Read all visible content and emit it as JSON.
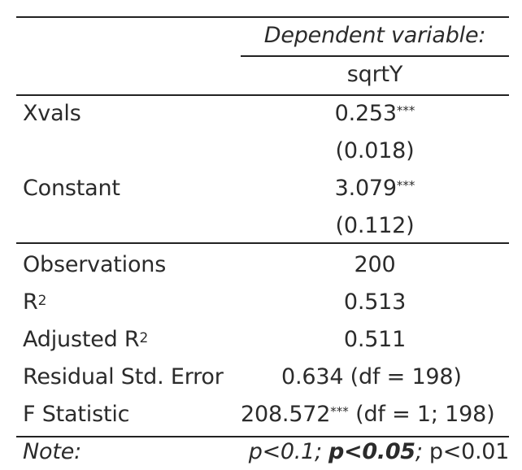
{
  "table": {
    "header": {
      "dependent_label": "Dependent variable:",
      "dependent_name": "sqrtY"
    },
    "coefficients": [
      {
        "name": "Xvals",
        "estimate": "0.253",
        "stars": "***",
        "se": "(0.018)"
      },
      {
        "name": "Constant",
        "estimate": "3.079",
        "stars": "***",
        "se": "(0.112)"
      }
    ],
    "stats": {
      "observations": {
        "label": "Observations",
        "value": "200"
      },
      "r2": {
        "label": "R",
        "sup": "2",
        "value": "0.513"
      },
      "adj_r2": {
        "label": "Adjusted R",
        "sup": "2",
        "value": "0.511"
      },
      "rse": {
        "label": "Residual Std. Error",
        "value": "0.634 (df = 198)"
      },
      "fstat": {
        "label": "F Statistic",
        "value": "208.572",
        "stars": "***",
        "df": " (df = 1; 198)"
      }
    },
    "note": {
      "label": "Note:",
      "p1": "p<0.1",
      "sep1": "; ",
      "p2": "p<0.05",
      "sep2": "; ",
      "p3": "p<0.01"
    }
  }
}
